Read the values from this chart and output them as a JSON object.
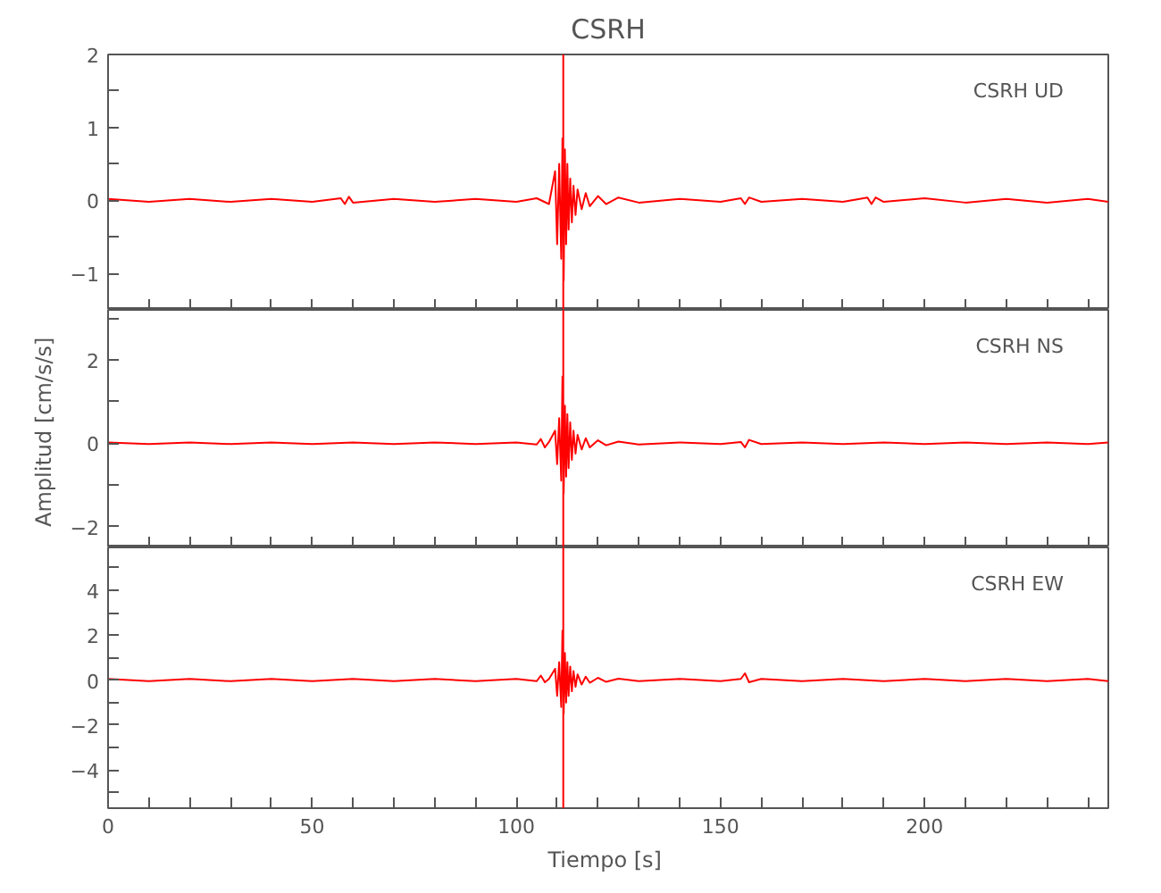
{
  "chart_data": [
    {
      "type": "line",
      "title": "CSRH",
      "annotations": [
        "CSRH   UD"
      ],
      "tick_labels": "y",
      "grid": false,
      "xlim": [
        0,
        245
      ],
      "xticks": [
        0,
        {
          "value": 10,
          "label": null
        },
        {
          "value": 20,
          "label": null
        },
        {
          "value": 30,
          "label": null
        },
        {
          "value": 40,
          "label": null
        },
        50,
        {
          "value": 60,
          "label": null
        },
        {
          "value": 70,
          "label": null
        },
        {
          "value": 80,
          "label": null
        },
        {
          "value": 90,
          "label": null
        },
        100,
        {
          "value": 110,
          "label": null
        },
        {
          "value": 120,
          "label": null
        },
        {
          "value": 130,
          "label": null
        },
        {
          "value": 140,
          "label": null
        },
        150,
        {
          "value": 160,
          "label": null
        },
        {
          "value": 170,
          "label": null
        },
        {
          "value": 180,
          "label": null
        },
        {
          "value": 190,
          "label": null
        },
        200,
        {
          "value": 210,
          "label": null
        },
        {
          "value": 220,
          "label": null
        },
        {
          "value": 230,
          "label": null
        },
        {
          "value": 240,
          "label": null
        }
      ],
      "ylim": [
        -1.5,
        2
      ],
      "yticks": [
        {
          "value": -1.5,
          "label": null
        },
        {
          "value": -1,
          "label": "−1"
        },
        {
          "value": -0.5,
          "label": null
        },
        0,
        {
          "value": 0.5,
          "label": null
        },
        1,
        {
          "value": 1.5,
          "label": null
        },
        2
      ],
      "ref_lines": [
        {
          "axis": "x",
          "value": 111.5,
          "color": "#ff0000"
        }
      ],
      "series": [
        {
          "color": "#ff0000",
          "x": [
            0,
            10,
            20,
            30,
            40,
            50,
            57,
            58,
            59,
            60,
            70,
            80,
            90,
            100,
            105,
            108,
            109.5,
            110,
            110.5,
            111,
            111.3,
            111.6,
            111.9,
            112.2,
            112.5,
            112.8,
            113.2,
            113.6,
            114,
            114.5,
            115,
            116,
            117,
            118,
            120,
            122,
            125,
            130,
            140,
            150,
            155,
            156,
            157,
            160,
            170,
            180,
            186,
            187,
            188,
            190,
            200,
            210,
            220,
            230,
            240,
            245
          ],
          "values": [
            0.02,
            -0.02,
            0.02,
            -0.02,
            0.02,
            -0.02,
            0.03,
            -0.05,
            0.05,
            -0.03,
            0.02,
            -0.02,
            0.02,
            -0.02,
            0.03,
            -0.05,
            0.4,
            -0.6,
            0.5,
            -0.8,
            0.85,
            -1.1,
            0.7,
            -0.6,
            0.5,
            -0.4,
            0.3,
            -0.3,
            0.2,
            -0.2,
            0.15,
            -0.12,
            0.1,
            -0.08,
            0.06,
            -0.05,
            0.04,
            -0.03,
            0.02,
            -0.02,
            0.03,
            -0.05,
            0.04,
            -0.02,
            0.02,
            -0.02,
            0.04,
            -0.05,
            0.04,
            -0.02,
            0.03,
            -0.03,
            0.02,
            -0.03,
            0.02,
            -0.02
          ]
        }
      ]
    },
    {
      "type": "line",
      "ylabel": "Amplitud  [cm/s/s]",
      "annotations": [
        "CSRH   NS"
      ],
      "tick_labels": "y",
      "grid": false,
      "xlim": [
        0,
        245
      ],
      "xticks": [
        0,
        {
          "value": 10,
          "label": null
        },
        {
          "value": 20,
          "label": null
        },
        {
          "value": 30,
          "label": null
        },
        {
          "value": 40,
          "label": null
        },
        50,
        {
          "value": 60,
          "label": null
        },
        {
          "value": 70,
          "label": null
        },
        {
          "value": 80,
          "label": null
        },
        {
          "value": 90,
          "label": null
        },
        100,
        {
          "value": 110,
          "label": null
        },
        {
          "value": 120,
          "label": null
        },
        {
          "value": 130,
          "label": null
        },
        {
          "value": 140,
          "label": null
        },
        150,
        {
          "value": 160,
          "label": null
        },
        {
          "value": 170,
          "label": null
        },
        {
          "value": 180,
          "label": null
        },
        {
          "value": 190,
          "label": null
        },
        200,
        {
          "value": 210,
          "label": null
        },
        {
          "value": 220,
          "label": null
        },
        {
          "value": 230,
          "label": null
        },
        {
          "value": 240,
          "label": null
        }
      ],
      "ylim": [
        -2.5,
        3.2
      ],
      "yticks": [
        {
          "value": -2,
          "label": "−2"
        },
        {
          "value": -1,
          "label": null
        },
        0,
        {
          "value": 1,
          "label": null
        },
        2,
        {
          "value": 3,
          "label": null
        }
      ],
      "ref_lines": [
        {
          "axis": "x",
          "value": 111.5,
          "color": "#ff0000"
        }
      ],
      "series": [
        {
          "color": "#ff0000",
          "x": [
            0,
            10,
            20,
            30,
            40,
            50,
            60,
            70,
            80,
            90,
            100,
            105,
            106,
            107,
            108,
            109.5,
            110,
            110.5,
            111,
            111.3,
            111.6,
            111.9,
            112.2,
            112.5,
            112.8,
            113.2,
            113.6,
            114,
            114.5,
            115,
            116,
            117,
            118,
            120,
            122,
            125,
            130,
            140,
            150,
            155,
            156,
            157,
            160,
            170,
            180,
            190,
            200,
            210,
            220,
            230,
            240,
            245
          ],
          "values": [
            0.02,
            -0.02,
            0.02,
            -0.02,
            0.02,
            -0.02,
            0.02,
            -0.02,
            0.02,
            -0.02,
            0.02,
            -0.03,
            0.1,
            -0.1,
            0.03,
            0.3,
            -0.5,
            0.6,
            -0.9,
            1.6,
            -1.2,
            0.9,
            -0.8,
            0.7,
            -0.6,
            0.5,
            -0.4,
            0.3,
            -0.25,
            0.2,
            -0.15,
            0.12,
            -0.1,
            0.07,
            -0.05,
            0.04,
            -0.03,
            0.02,
            -0.02,
            0.03,
            -0.1,
            0.08,
            -0.02,
            0.02,
            -0.02,
            0.02,
            -0.02,
            0.02,
            -0.02,
            0.02,
            -0.02,
            0.02
          ]
        }
      ]
    },
    {
      "type": "line",
      "xlabel": "Tiempo  [s]",
      "annotations": [
        "CSRH   EW"
      ],
      "grid": false,
      "xlim": [
        0,
        245
      ],
      "xticks": [
        0,
        {
          "value": 10,
          "label": null
        },
        {
          "value": 20,
          "label": null
        },
        {
          "value": 30,
          "label": null
        },
        {
          "value": 40,
          "label": null
        },
        50,
        {
          "value": 60,
          "label": null
        },
        {
          "value": 70,
          "label": null
        },
        {
          "value": 80,
          "label": null
        },
        {
          "value": 90,
          "label": null
        },
        100,
        {
          "value": 110,
          "label": null
        },
        {
          "value": 120,
          "label": null
        },
        {
          "value": 130,
          "label": null
        },
        {
          "value": 140,
          "label": null
        },
        150,
        {
          "value": 160,
          "label": null
        },
        {
          "value": 170,
          "label": null
        },
        {
          "value": 180,
          "label": null
        },
        {
          "value": 190,
          "label": null
        },
        200,
        {
          "value": 210,
          "label": null
        },
        {
          "value": 220,
          "label": null
        },
        {
          "value": 230,
          "label": null
        },
        {
          "value": 240,
          "label": null
        }
      ],
      "ylim": [
        -5.7,
        5.9
      ],
      "yticks": [
        {
          "value": -5,
          "label": null
        },
        {
          "value": -4,
          "label": "−4"
        },
        {
          "value": -3,
          "label": null
        },
        {
          "value": -2,
          "label": "−2"
        },
        {
          "value": -1,
          "label": null
        },
        0,
        {
          "value": 1,
          "label": null
        },
        2,
        {
          "value": 3,
          "label": null
        },
        4,
        {
          "value": 5,
          "label": null
        }
      ],
      "ref_lines": [
        {
          "axis": "x",
          "value": 111.5,
          "color": "#ff0000"
        }
      ],
      "series": [
        {
          "color": "#ff0000",
          "x": [
            0,
            10,
            20,
            30,
            40,
            50,
            60,
            70,
            80,
            90,
            100,
            105,
            106,
            107,
            108,
            109.5,
            110,
            110.5,
            111,
            111.3,
            111.6,
            111.9,
            112.2,
            112.5,
            112.8,
            113.2,
            113.6,
            114,
            114.5,
            115,
            116,
            117,
            118,
            120,
            122,
            125,
            130,
            140,
            150,
            155,
            156,
            157,
            160,
            170,
            180,
            190,
            200,
            210,
            220,
            230,
            240,
            245
          ],
          "values": [
            0.05,
            -0.05,
            0.05,
            -0.05,
            0.05,
            -0.05,
            0.05,
            -0.05,
            0.05,
            -0.05,
            0.05,
            -0.05,
            0.2,
            -0.1,
            0.05,
            0.5,
            -0.7,
            0.8,
            -1.2,
            2.2,
            -1.5,
            1.2,
            -1.0,
            0.8,
            -0.7,
            0.6,
            -0.5,
            0.4,
            -0.3,
            0.25,
            -0.2,
            0.15,
            -0.12,
            0.1,
            -0.08,
            0.06,
            -0.05,
            0.05,
            -0.05,
            0.05,
            0.3,
            -0.1,
            0.05,
            -0.05,
            0.05,
            -0.05,
            0.05,
            -0.05,
            0.05,
            -0.05,
            0.05,
            -0.05
          ]
        }
      ]
    }
  ]
}
